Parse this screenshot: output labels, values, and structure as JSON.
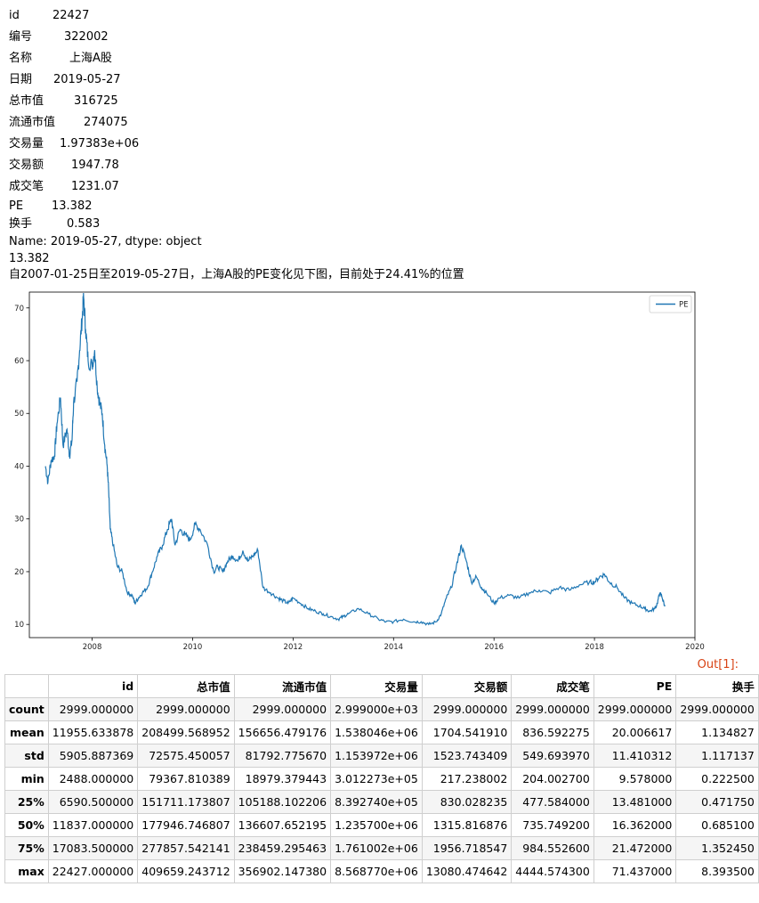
{
  "series": [
    {
      "key": "id",
      "value": "22427"
    },
    {
      "key": "编号",
      "value": "322002"
    },
    {
      "key": "名称",
      "value": "上海A股"
    },
    {
      "key": "日期",
      "value": "2019-05-27"
    },
    {
      "key": "总市值",
      "value": "316725"
    },
    {
      "key": "流通市值",
      "value": "274075"
    },
    {
      "key": "交易量",
      "value": "1.97383e+06"
    },
    {
      "key": "交易额",
      "value": "1947.78"
    },
    {
      "key": "成交笔",
      "value": "1231.07"
    },
    {
      "key": "PE",
      "value": "13.382"
    },
    {
      "key": "换手",
      "value": "0.583"
    }
  ],
  "series_footer": "Name: 2019-05-27, dtype: object",
  "pe_value": "13.382",
  "message": "自2007-01-25日至2019-05-27日，上海A股的PE变化见下图，目前处于24.41%的位置",
  "out_prompt": "Out[1]:",
  "chart_data": {
    "type": "line",
    "legend": "PE",
    "legend_position": "top-right",
    "xlim": [
      2006.75,
      2020
    ],
    "ylim": [
      7.5,
      73
    ],
    "xticks": [
      2008,
      2010,
      2012,
      2014,
      2016,
      2018,
      2020
    ],
    "yticks": [
      10,
      20,
      30,
      40,
      50,
      60,
      70
    ],
    "line_color": "#1f77b4",
    "series": [
      {
        "name": "PE",
        "x": [
          2007.07,
          2007.12,
          2007.18,
          2007.25,
          2007.3,
          2007.37,
          2007.42,
          2007.5,
          2007.55,
          2007.6,
          2007.63,
          2007.7,
          2007.75,
          2007.8,
          2007.83,
          2007.87,
          2007.92,
          2008.0,
          2008.05,
          2008.1,
          2008.15,
          2008.2,
          2008.25,
          2008.3,
          2008.33,
          2008.36,
          2008.42,
          2008.5,
          2008.6,
          2008.7,
          2008.8,
          2008.85,
          2008.92,
          2009.0,
          2009.1,
          2009.2,
          2009.3,
          2009.4,
          2009.5,
          2009.58,
          2009.65,
          2009.75,
          2009.85,
          2009.95,
          2010.05,
          2010.15,
          2010.3,
          2010.42,
          2010.5,
          2010.6,
          2010.7,
          2010.8,
          2010.9,
          2011.0,
          2011.1,
          2011.2,
          2011.3,
          2011.4,
          2011.55,
          2011.7,
          2011.8,
          2011.9,
          2012.0,
          2012.15,
          2012.3,
          2012.45,
          2012.6,
          2012.75,
          2012.9,
          2013.0,
          2013.1,
          2013.3,
          2013.5,
          2013.7,
          2013.85,
          2014.0,
          2014.2,
          2014.4,
          2014.55,
          2014.7,
          2014.85,
          2014.95,
          2015.05,
          2015.15,
          2015.25,
          2015.35,
          2015.45,
          2015.55,
          2015.65,
          2015.75,
          2015.85,
          2016.0,
          2016.1,
          2016.3,
          2016.5,
          2016.7,
          2016.9,
          2017.1,
          2017.3,
          2017.5,
          2017.7,
          2017.9,
          2018.0,
          2018.1,
          2018.2,
          2018.3,
          2018.45,
          2018.6,
          2018.75,
          2018.9,
          2019.0,
          2019.1,
          2019.2,
          2019.25,
          2019.3,
          2019.35,
          2019.4
        ],
        "y": [
          40,
          37,
          41,
          42,
          48,
          53,
          44,
          47,
          42,
          45,
          52,
          56,
          62,
          68,
          72,
          66,
          60,
          59,
          62,
          55,
          52,
          50,
          44,
          40,
          35,
          28,
          25,
          21,
          20,
          16,
          15.5,
          14,
          15,
          16,
          17,
          20,
          23,
          25,
          28,
          30,
          25,
          28,
          27,
          26,
          29,
          28,
          25,
          20,
          21,
          20,
          22,
          23,
          22,
          24,
          22,
          23,
          24,
          17,
          16,
          15,
          14.5,
          14,
          15,
          14,
          13,
          12.5,
          12,
          11.5,
          11,
          11.5,
          12,
          13,
          12,
          11,
          10.5,
          10.5,
          11,
          10.5,
          10.5,
          10,
          10.5,
          12,
          15,
          17,
          21,
          25,
          22,
          18,
          19,
          17,
          16,
          14,
          15,
          15.5,
          15,
          16,
          16.5,
          16,
          17,
          16.5,
          17.5,
          18,
          18,
          19,
          19.5,
          18,
          17,
          15,
          14,
          13.5,
          13,
          12.5,
          13,
          14,
          16,
          15,
          13.4
        ]
      }
    ]
  },
  "table": {
    "columns": [
      "",
      "id",
      "总市值",
      "流通市值",
      "交易量",
      "交易额",
      "成交笔",
      "PE",
      "换手"
    ],
    "rows": [
      [
        "count",
        "2999.000000",
        "2999.000000",
        "2999.000000",
        "2.999000e+03",
        "2999.000000",
        "2999.000000",
        "2999.000000",
        "2999.000000"
      ],
      [
        "mean",
        "11955.633878",
        "208499.568952",
        "156656.479176",
        "1.538046e+06",
        "1704.541910",
        "836.592275",
        "20.006617",
        "1.134827"
      ],
      [
        "std",
        "5905.887369",
        "72575.450057",
        "81792.775670",
        "1.153972e+06",
        "1523.743409",
        "549.693970",
        "11.410312",
        "1.117137"
      ],
      [
        "min",
        "2488.000000",
        "79367.810389",
        "18979.379443",
        "3.012273e+05",
        "217.238002",
        "204.002700",
        "9.578000",
        "0.222500"
      ],
      [
        "25%",
        "6590.500000",
        "151711.173807",
        "105188.102206",
        "8.392740e+05",
        "830.028235",
        "477.584000",
        "13.481000",
        "0.471750"
      ],
      [
        "50%",
        "11837.000000",
        "177946.746807",
        "136607.652195",
        "1.235700e+06",
        "1315.816876",
        "735.749200",
        "16.362000",
        "0.685100"
      ],
      [
        "75%",
        "17083.500000",
        "277857.542141",
        "238459.295463",
        "1.761002e+06",
        "1956.718547",
        "984.552600",
        "21.472000",
        "1.352450"
      ],
      [
        "max",
        "22427.000000",
        "409659.243712",
        "356902.147380",
        "8.568770e+06",
        "13080.474642",
        "4444.574300",
        "71.437000",
        "8.393500"
      ]
    ]
  }
}
